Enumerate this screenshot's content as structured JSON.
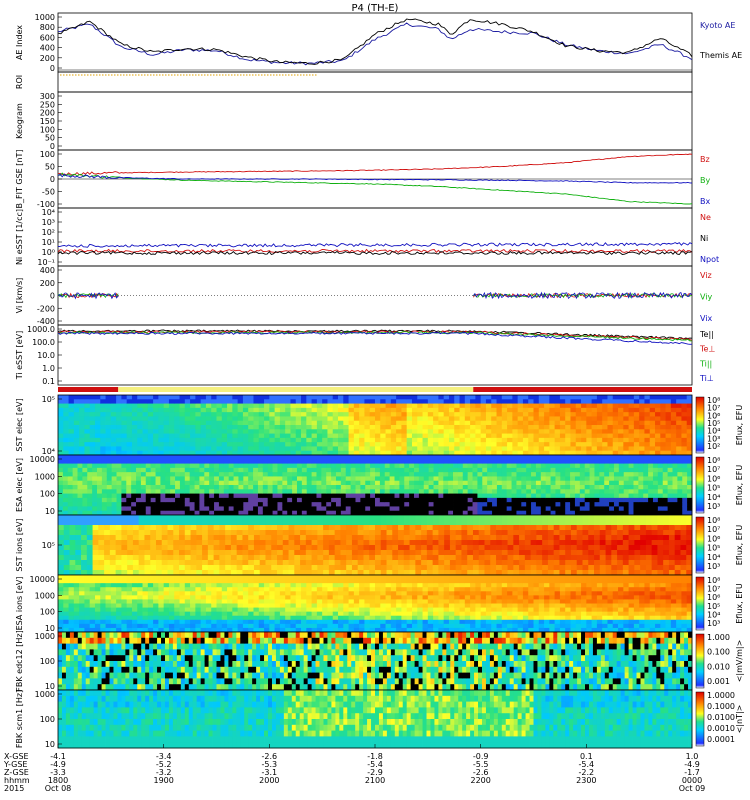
{
  "title": "P4 (TH-E)",
  "colors": {
    "kyoto": "#1a1aa0",
    "themis": "#000000",
    "red": "#d01010",
    "green": "#10b010",
    "blue": "#1010c0",
    "orange": "#e0a000"
  },
  "chart_data": [
    {
      "type": "line",
      "panel": "AE Index",
      "ylabel": "AE Index",
      "ylim": [
        0,
        1000
      ],
      "yticks": [
        "1000",
        "800",
        "600",
        "400",
        "200",
        "0"
      ],
      "x": [
        0,
        0.05,
        0.1,
        0.15,
        0.2,
        0.25,
        0.3,
        0.35,
        0.4,
        0.45,
        0.5,
        0.55,
        0.6,
        0.62,
        0.65,
        0.7,
        0.75,
        0.8,
        0.85,
        0.9,
        0.95,
        1.0
      ],
      "series": [
        {
          "name": "Kyoto AE",
          "color": "#1a1aa0",
          "values": [
            750,
            900,
            450,
            300,
            400,
            380,
            200,
            140,
            130,
            180,
            600,
            900,
            800,
            600,
            800,
            750,
            720,
            500,
            380,
            320,
            500,
            220
          ]
        },
        {
          "name": "Themis AE",
          "color": "#000000",
          "values": [
            700,
            950,
            500,
            350,
            420,
            400,
            250,
            150,
            130,
            200,
            700,
            1000,
            900,
            700,
            1000,
            900,
            750,
            480,
            380,
            340,
            620,
            280
          ]
        }
      ],
      "legend": [
        "Kyoto AE",
        "Themis AE"
      ]
    },
    {
      "type": "line",
      "panel": "ROI",
      "ylabel": "ROI",
      "series": [
        {
          "name": "ROI",
          "values": [
            0,
            0
          ]
        }
      ]
    },
    {
      "type": "heatmap",
      "panel": "Keogram",
      "ylabel": "Keogram",
      "ylim": [
        0,
        300
      ],
      "yticks": [
        "300",
        "250",
        "200",
        "150",
        "100",
        "50",
        "0"
      ]
    },
    {
      "type": "line",
      "panel": "B FIT GSE",
      "ylabel": "B_FIT GSE [nT]",
      "ylim": [
        -100,
        100
      ],
      "yticks": [
        "100",
        "50",
        "0",
        "-50",
        "-100"
      ],
      "x": [
        0,
        0.1,
        0.2,
        0.3,
        0.4,
        0.5,
        0.6,
        0.7,
        0.8,
        0.9,
        1.0
      ],
      "series": [
        {
          "name": "Bz",
          "color": "#d01010",
          "values": [
            20,
            25,
            28,
            30,
            32,
            35,
            40,
            50,
            65,
            90,
            100
          ]
        },
        {
          "name": "By",
          "color": "#10b010",
          "values": [
            20,
            5,
            -5,
            -10,
            -15,
            -20,
            -30,
            -45,
            -60,
            -90,
            -100
          ]
        },
        {
          "name": "Bx",
          "color": "#1010c0",
          "values": [
            15,
            5,
            0,
            0,
            0,
            -2,
            -3,
            -5,
            -8,
            -15,
            -15
          ]
        }
      ],
      "legend": [
        "Bz",
        "By",
        "Bx"
      ]
    },
    {
      "type": "line",
      "panel": "Ni",
      "ylabel": "Ni eSST [1/cc]",
      "yticks": [
        "10⁴",
        "10³",
        "10²",
        "10¹",
        "10⁰",
        "10⁻¹"
      ],
      "series": [
        {
          "name": "Ne",
          "color": "#d01010"
        },
        {
          "name": "Ni",
          "color": "#000000"
        },
        {
          "name": "Npot",
          "color": "#1010c0"
        }
      ],
      "legend": [
        "Ne",
        "Ni",
        "Npot"
      ]
    },
    {
      "type": "line",
      "panel": "Vi",
      "ylabel": "Vi [km/s]",
      "ylim": [
        -400,
        400
      ],
      "yticks": [
        "400",
        "200",
        "0",
        "-200",
        "-400"
      ],
      "series": [
        {
          "name": "Viz",
          "color": "#d01010"
        },
        {
          "name": "Viy",
          "color": "#10b010"
        },
        {
          "name": "Vix",
          "color": "#1010c0"
        }
      ],
      "legend": [
        "Viz",
        "Viy",
        "Vix"
      ]
    },
    {
      "type": "line",
      "panel": "Ti",
      "ylabel": "Ti eSST [eV]",
      "yticks": [
        "1000.0",
        "100.0",
        "10.0",
        "1.0",
        "0.1"
      ],
      "series": [
        {
          "name": "Te||",
          "color": "#000000"
        },
        {
          "name": "Te⊥",
          "color": "#d01010"
        },
        {
          "name": "Ti||",
          "color": "#10b010"
        },
        {
          "name": "Ti⊥",
          "color": "#1010c0"
        }
      ],
      "legend": [
        "Te||",
        "Te⊥",
        "Ti||",
        "Ti⊥"
      ]
    },
    {
      "type": "heatmap",
      "panel": "SST electrons",
      "ylabel": "SST elec [eV]",
      "yticks": [
        "10⁵",
        "10⁴"
      ],
      "colorbar": {
        "label": "Eflux, EFU",
        "ticks": [
          "10⁸",
          "10⁷",
          "10⁶",
          "10⁵",
          "10⁴",
          "10³",
          "10²"
        ]
      }
    },
    {
      "type": "heatmap",
      "panel": "ESA electrons",
      "ylabel": "ESA elec [eV]",
      "yticks": [
        "10000",
        "1000",
        "100",
        "10"
      ],
      "colorbar": {
        "label": "Eflux, EFU",
        "ticks": [
          "10⁸",
          "10⁷",
          "10⁶",
          "10⁵",
          "10⁴",
          "10³"
        ]
      }
    },
    {
      "type": "heatmap",
      "panel": "SST ions",
      "ylabel": "SST ions [eV]",
      "yticks": [
        "10⁵"
      ],
      "colorbar": {
        "label": "Eflux, EFU",
        "ticks": [
          "10⁸",
          "10⁷",
          "10⁶",
          "10⁵",
          "10⁴",
          "10³"
        ]
      }
    },
    {
      "type": "heatmap",
      "panel": "ESA ions",
      "ylabel": "ESA ions [eV]",
      "yticks": [
        "10000",
        "1000",
        "100",
        "10"
      ],
      "colorbar": {
        "label": "Eflux, EFU",
        "ticks": [
          "10⁸",
          "10⁷",
          "10⁶",
          "10⁵",
          "10⁴",
          "10³"
        ]
      }
    },
    {
      "type": "heatmap",
      "panel": "FBK edc12",
      "ylabel": "FBK edc12 [Hz]",
      "yticks": [
        "1000",
        "100",
        "10"
      ],
      "colorbar": {
        "label": "<|mV/m|>",
        "ticks": [
          "1.000",
          "0.100",
          "0.010",
          "0.001"
        ]
      }
    },
    {
      "type": "heatmap",
      "panel": "FBK scm1",
      "ylabel": "FBK scm1 [Hz]",
      "yticks": [
        "1000",
        "100",
        "10"
      ],
      "colorbar": {
        "label": "<|nT|>",
        "ticks": [
          "1.0000",
          "0.1000",
          "0.0100",
          "0.0010",
          "0.0001"
        ]
      }
    }
  ],
  "xaxis": {
    "row_labels": [
      "X-GSE",
      "Y-GSE",
      "Z-GSE",
      "hhmm",
      "2015"
    ],
    "columns": [
      {
        "values": [
          "-4.1",
          "-4.9",
          "-3.3",
          "1800",
          "Oct 08"
        ]
      },
      {
        "values": [
          "-3.4",
          "-5.2",
          "-3.2",
          "1900",
          ""
        ]
      },
      {
        "values": [
          "-2.6",
          "-5.3",
          "-3.1",
          "2000",
          ""
        ]
      },
      {
        "values": [
          "-1.8",
          "-5.4",
          "-2.9",
          "2100",
          ""
        ]
      },
      {
        "values": [
          "-0.9",
          "-5.5",
          "-2.6",
          "2200",
          ""
        ]
      },
      {
        "values": [
          "0.1",
          "-5.4",
          "-2.2",
          "2300",
          ""
        ]
      },
      {
        "values": [
          "1.0",
          "-4.9",
          "-1.7",
          "0000",
          "Oct 09"
        ]
      }
    ]
  }
}
